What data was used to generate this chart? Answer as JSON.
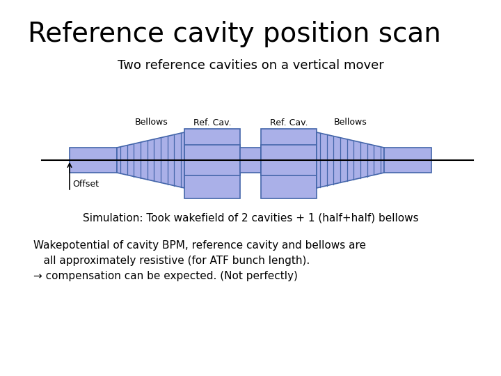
{
  "title": "Reference cavity position scan",
  "subtitle": "Two reference cavities on a vertical mover",
  "sim_text": "Simulation: Took wakefield of 2 cavities + 1 (half+half) bellows",
  "body_text1": "Wakepotential of cavity BPM, reference cavity and bellows are",
  "body_text2": "   all approximately resistive (for ATF bunch length).",
  "body_text3": "→ compensation can be expected. (Not perfectly)",
  "bg_color": "#ffffff",
  "cavity_fill": "#aab0e8",
  "cavity_edge": "#4466aa",
  "beam_color": "#000000",
  "label_color": "#000000",
  "title_fontsize": 28,
  "subtitle_fontsize": 13,
  "sim_fontsize": 11,
  "body_fontsize": 11
}
